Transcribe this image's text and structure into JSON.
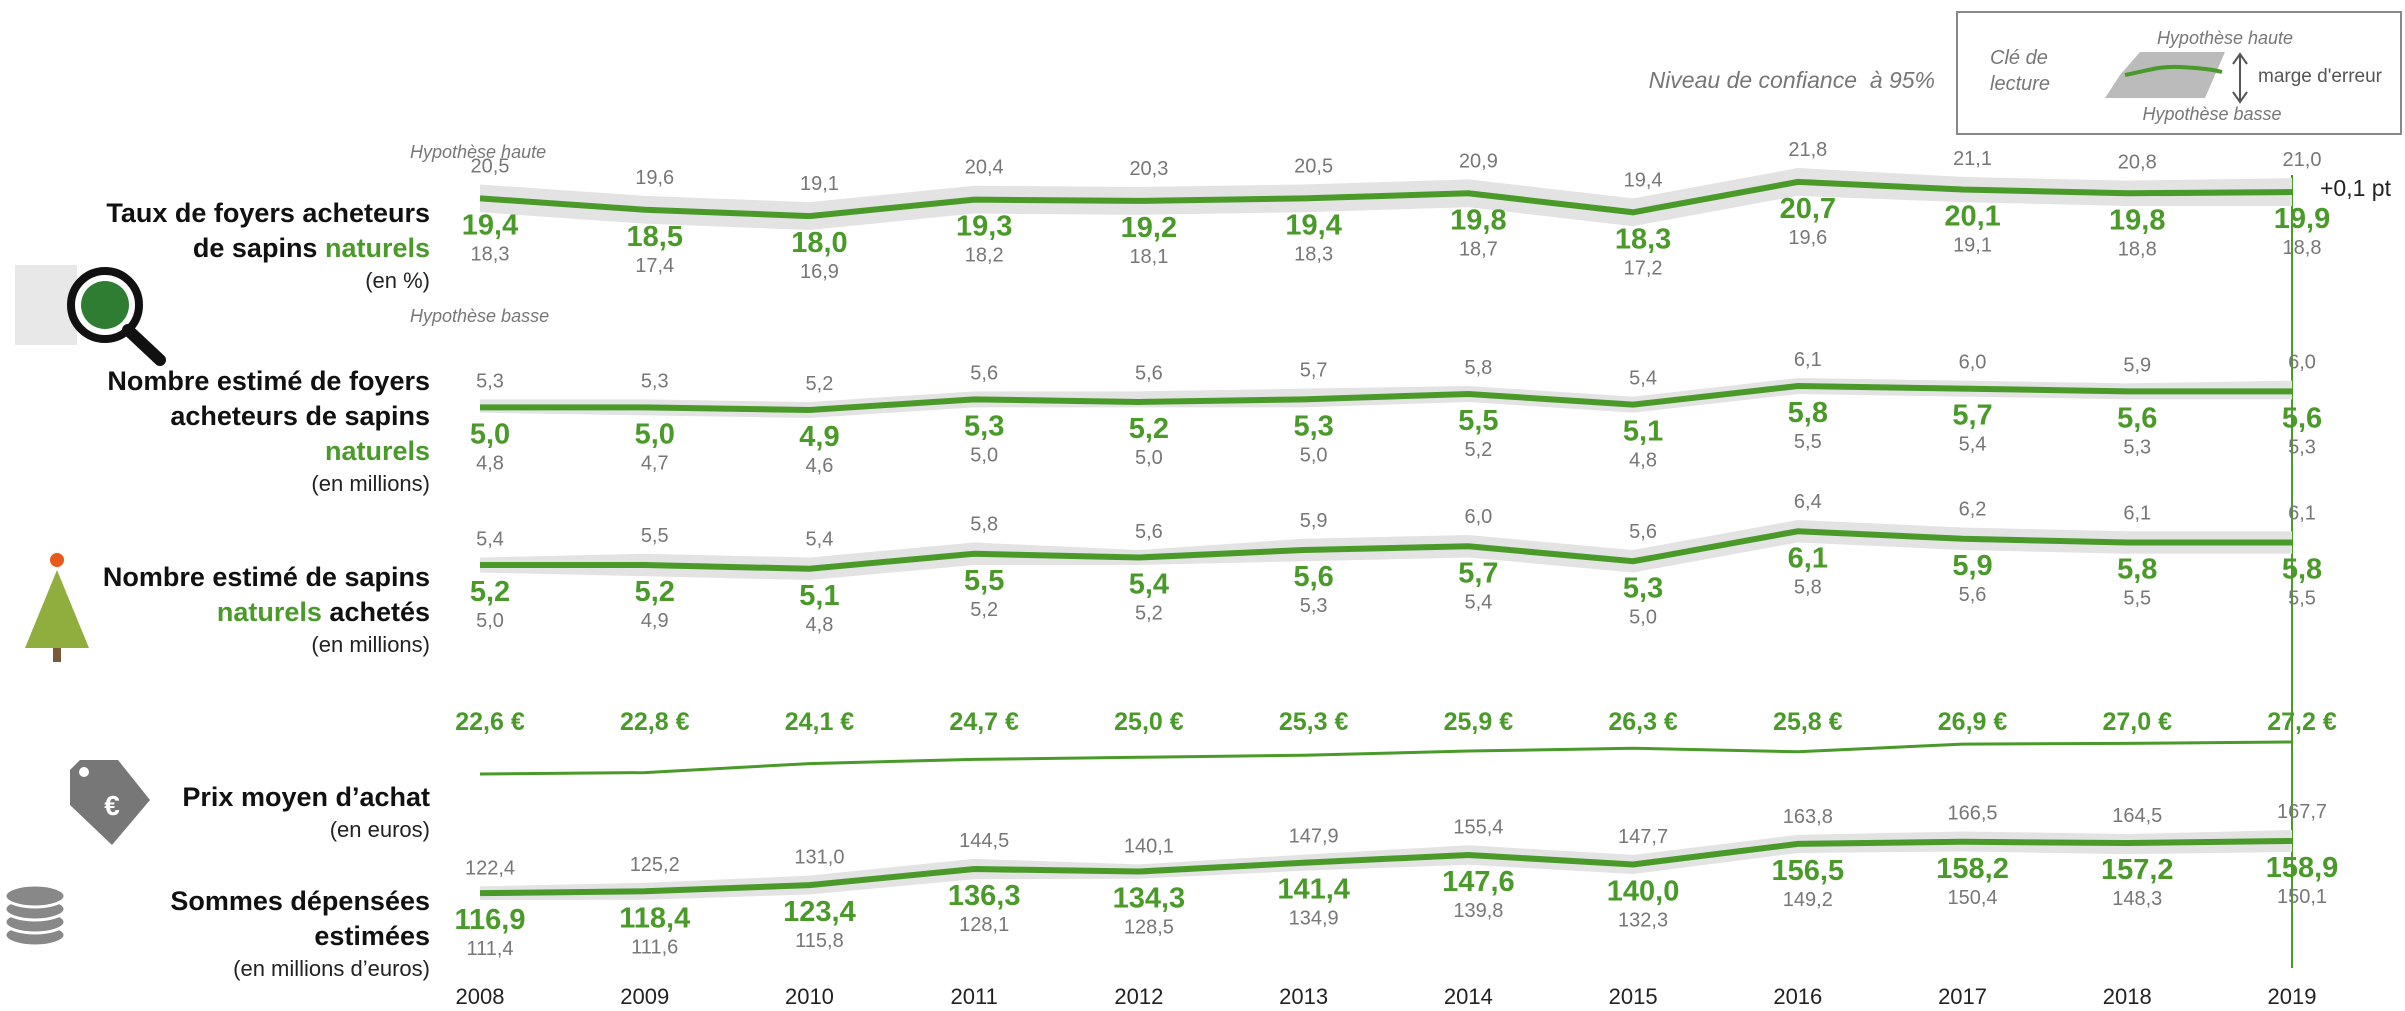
{
  "chart_data": {
    "type": "line",
    "highlight_color": "#4a9a2a",
    "band_color": "#e3e3e3",
    "categories": [
      "2008",
      "2009",
      "2010",
      "2011",
      "2012",
      "2013",
      "2014",
      "2015",
      "2016",
      "2017",
      "2018",
      "2019"
    ],
    "confidence_note": "Niveau de confiance  à 95%",
    "high_note": "Hypothèse haute",
    "low_note": "Hypothèse basse",
    "change_note": "+0,1 pt",
    "key": {
      "title_lines": [
        "Clé de",
        "lecture"
      ],
      "high": "Hypothèse haute",
      "low": "Hypothèse basse",
      "margin": "marge d'erreur"
    },
    "panels": [
      {
        "lines": [
          [
            {
              "text": "Taux de foyers acheteurs"
            }
          ],
          [
            {
              "text": "de sapins "
            },
            {
              "text": "naturels",
              "highlight": true
            }
          ]
        ],
        "unit": "(en %)",
        "values": [
          19.4,
          18.5,
          18.0,
          19.3,
          19.2,
          19.4,
          19.8,
          18.3,
          20.7,
          20.1,
          19.8,
          19.9
        ],
        "value_labels": [
          "19,4",
          "18,5",
          "18,0",
          "19,3",
          "19,2",
          "19,4",
          "19,8",
          "18,3",
          "20,7",
          "20,1",
          "19,8",
          "19,9"
        ],
        "high": [
          20.5,
          19.6,
          19.1,
          20.4,
          20.3,
          20.5,
          20.9,
          19.4,
          21.8,
          21.1,
          20.8,
          21.0
        ],
        "high_labels": [
          "20,5",
          "19,6",
          "19,1",
          "20,4",
          "20,3",
          "20,5",
          "20,9",
          "19,4",
          "21,8",
          "21,1",
          "20,8",
          "21,0"
        ],
        "low": [
          18.3,
          17.4,
          16.9,
          18.2,
          18.1,
          18.3,
          18.7,
          17.2,
          19.6,
          19.1,
          18.8,
          18.8
        ],
        "low_labels": [
          "18,3",
          "17,4",
          "16,9",
          "18,2",
          "18,1",
          "18,3",
          "18,7",
          "17,2",
          "19,6",
          "19,1",
          "18,8",
          "18,8"
        ]
      },
      {
        "lines": [
          [
            {
              "text": "Nombre estimé de foyers"
            }
          ],
          [
            {
              "text": "acheteurs de sapins"
            }
          ],
          [
            {
              "text": "naturels",
              "highlight": true
            }
          ]
        ],
        "unit": "(en millions)",
        "values": [
          5.0,
          5.0,
          4.9,
          5.3,
          5.2,
          5.3,
          5.5,
          5.1,
          5.8,
          5.7,
          5.6,
          5.6
        ],
        "value_labels": [
          "5,0",
          "5,0",
          "4,9",
          "5,3",
          "5,2",
          "5,3",
          "5,5",
          "5,1",
          "5,8",
          "5,7",
          "5,6",
          "5,6"
        ],
        "high": [
          5.3,
          5.3,
          5.2,
          5.6,
          5.6,
          5.7,
          5.8,
          5.4,
          6.1,
          6.0,
          5.9,
          6.0
        ],
        "high_labels": [
          "5,3",
          "5,3",
          "5,2",
          "5,6",
          "5,6",
          "5,7",
          "5,8",
          "5,4",
          "6,1",
          "6,0",
          "5,9",
          "6,0"
        ],
        "low": [
          4.8,
          4.7,
          4.6,
          5.0,
          5.0,
          5.0,
          5.2,
          4.8,
          5.5,
          5.4,
          5.3,
          5.3
        ],
        "low_labels": [
          "4,8",
          "4,7",
          "4,6",
          "5,0",
          "5,0",
          "5,0",
          "5,2",
          "4,8",
          "5,5",
          "5,4",
          "5,3",
          "5,3"
        ]
      },
      {
        "lines": [
          [
            {
              "text": "Nombre estimé de sapins"
            }
          ],
          [
            {
              "text": "naturels",
              "highlight": true
            },
            {
              "text": " achetés"
            }
          ]
        ],
        "unit": "(en millions)",
        "values": [
          5.2,
          5.2,
          5.1,
          5.5,
          5.4,
          5.6,
          5.7,
          5.3,
          6.1,
          5.9,
          5.8,
          5.8
        ],
        "value_labels": [
          "5,2",
          "5,2",
          "5,1",
          "5,5",
          "5,4",
          "5,6",
          "5,7",
          "5,3",
          "6,1",
          "5,9",
          "5,8",
          "5,8"
        ],
        "high": [
          5.4,
          5.5,
          5.4,
          5.8,
          5.6,
          5.9,
          6.0,
          5.6,
          6.4,
          6.2,
          6.1,
          6.1
        ],
        "high_labels": [
          "5,4",
          "5,5",
          "5,4",
          "5,8",
          "5,6",
          "5,9",
          "6,0",
          "5,6",
          "6,4",
          "6,2",
          "6,1",
          "6,1"
        ],
        "low": [
          5.0,
          4.9,
          4.8,
          5.2,
          5.2,
          5.3,
          5.4,
          5.0,
          5.8,
          5.6,
          5.5,
          5.5
        ],
        "low_labels": [
          "5,0",
          "4,9",
          "4,8",
          "5,2",
          "5,2",
          "5,3",
          "5,4",
          "5,0",
          "5,8",
          "5,6",
          "5,5",
          "5,5"
        ]
      },
      {
        "lines": [
          [
            {
              "text": "Prix moyen d’achat"
            }
          ]
        ],
        "unit": "(en euros)",
        "values": [
          22.6,
          22.8,
          24.1,
          24.7,
          25.0,
          25.3,
          25.9,
          26.3,
          25.8,
          26.9,
          27.0,
          27.2
        ],
        "value_labels": [
          "22,6 €",
          "22,8 €",
          "24,1 €",
          "24,7 €",
          "25,0 €",
          "25,3 €",
          "25,9 €",
          "26,3 €",
          "25,8 €",
          "26,9 €",
          "27,0 €",
          "27,2 €"
        ]
      },
      {
        "lines": [
          [
            {
              "text": "Sommes dépensées"
            }
          ],
          [
            {
              "text": "estimées"
            }
          ]
        ],
        "unit": "(en millions d’euros)",
        "values": [
          116.9,
          118.4,
          123.4,
          136.3,
          134.3,
          141.4,
          147.6,
          140.0,
          156.5,
          158.2,
          157.2,
          158.9
        ],
        "value_labels": [
          "116,9",
          "118,4",
          "123,4",
          "136,3",
          "134,3",
          "141,4",
          "147,6",
          "140,0",
          "156,5",
          "158,2",
          "157,2",
          "158,9"
        ],
        "high": [
          122.4,
          125.2,
          131.0,
          144.5,
          140.1,
          147.9,
          155.4,
          147.7,
          163.8,
          166.5,
          164.5,
          167.7
        ],
        "high_labels": [
          "122,4",
          "125,2",
          "131,0",
          "144,5",
          "140,1",
          "147,9",
          "155,4",
          "147,7",
          "163,8",
          "166,5",
          "164,5",
          "167,7"
        ],
        "low": [
          111.4,
          111.6,
          115.8,
          128.1,
          128.5,
          134.9,
          139.8,
          132.3,
          149.2,
          150.4,
          148.3,
          150.1
        ],
        "low_labels": [
          "111,4",
          "111,6",
          "115,8",
          "128,1",
          "128,5",
          "134,9",
          "139,8",
          "132,3",
          "149,2",
          "150,4",
          "148,3",
          "150,1"
        ]
      }
    ]
  }
}
